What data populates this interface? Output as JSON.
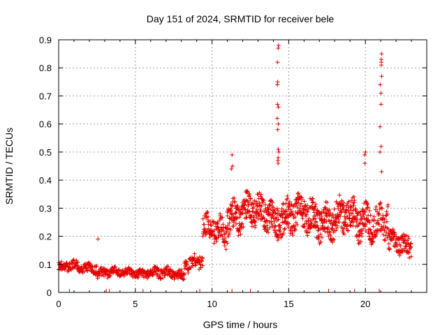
{
  "chart_data": {
    "type": "scatter",
    "title": "Day 151 of 2024, SRMTID for receiver bele",
    "xlabel": "GPS time / hours",
    "ylabel": "SRMTID / TECUs",
    "xlim": [
      0,
      24
    ],
    "ylim": [
      0,
      0.9
    ],
    "x_ticks": [
      0,
      5,
      10,
      15,
      20
    ],
    "x_tick_labels": [
      "0",
      "5",
      "10",
      "15",
      "20"
    ],
    "y_ticks": [
      0,
      0.1,
      0.2,
      0.3,
      0.4,
      0.5,
      0.6,
      0.7,
      0.8,
      0.9
    ],
    "y_tick_labels": [
      "0",
      "0.1",
      "0.2",
      "0.3",
      "0.4",
      "0.5",
      "0.6",
      "0.7",
      "0.8",
      "0.9"
    ],
    "grid": true,
    "marker": "+",
    "color": "#e60000",
    "series": [
      {
        "name": "SRMTID",
        "segments": [
          {
            "x0": 0.0,
            "x1": 2.5,
            "base": 0.09,
            "spread": 0.035,
            "step": 0.02
          },
          {
            "x0": 2.5,
            "x1": 6.5,
            "base": 0.07,
            "spread": 0.03,
            "step": 0.02
          },
          {
            "x0": 6.5,
            "x1": 8.2,
            "base": 0.065,
            "spread": 0.035,
            "step": 0.02
          },
          {
            "x0": 8.2,
            "x1": 9.4,
            "base": 0.11,
            "spread": 0.05,
            "step": 0.02
          },
          {
            "x0": 9.4,
            "x1": 11.0,
            "base": 0.22,
            "spread": 0.09,
            "step": 0.015
          },
          {
            "x0": 11.0,
            "x1": 14.0,
            "base": 0.28,
            "spread": 0.11,
            "step": 0.012
          },
          {
            "x0": 14.0,
            "x1": 17.5,
            "base": 0.27,
            "spread": 0.12,
            "step": 0.012
          },
          {
            "x0": 17.5,
            "x1": 20.5,
            "base": 0.26,
            "spread": 0.12,
            "step": 0.012
          },
          {
            "x0": 20.5,
            "x1": 21.5,
            "base": 0.25,
            "spread": 0.12,
            "step": 0.015
          },
          {
            "x0": 21.5,
            "x1": 23.0,
            "base": 0.17,
            "spread": 0.07,
            "step": 0.015
          }
        ],
        "spikes": [
          {
            "x": 14.3,
            "values": [
              0.88,
              0.87,
              0.82,
              0.75,
              0.74,
              0.67,
              0.66,
              0.62,
              0.6,
              0.58,
              0.51,
              0.5,
              0.48,
              0.47,
              0.46
            ]
          },
          {
            "x": 21.0,
            "values": [
              0.85,
              0.83,
              0.82,
              0.81,
              0.77,
              0.74,
              0.71,
              0.67,
              0.59,
              0.52,
              0.5,
              0.43
            ]
          },
          {
            "x": 11.3,
            "values": [
              0.49,
              0.45,
              0.44
            ]
          },
          {
            "x": 20.0,
            "values": [
              0.5,
              0.49,
              0.46
            ]
          },
          {
            "x": 2.6,
            "values": [
              0.19
            ]
          }
        ]
      }
    ],
    "rug_ticks_x": [
      0.7,
      3.1,
      3.3,
      5.5,
      9.2,
      11.3,
      12.5,
      17.6,
      19.3,
      20.9
    ]
  }
}
